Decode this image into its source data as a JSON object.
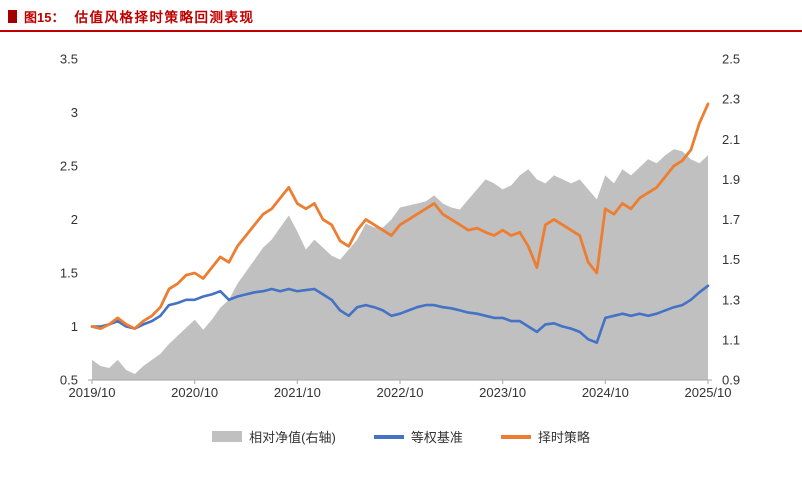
{
  "header": {
    "figure_label": "图15：",
    "title": "估值风格择时策略回测表现"
  },
  "colors": {
    "accent": "#c00000",
    "axis_line": "#a6a6a6",
    "text": "#333333"
  },
  "chart_data": {
    "type": "line",
    "title": "估值风格择时策略回测表现",
    "n_points": 73,
    "x_tick_labels": [
      "2019/10",
      "2020/10",
      "2021/10",
      "2022/10",
      "2023/10",
      "2024/10",
      "2025/10"
    ],
    "x_tick_positions": [
      0,
      12,
      24,
      36,
      48,
      60,
      72
    ],
    "left_axis": {
      "min": 0.5,
      "max": 3.5,
      "tick_values": [
        0.5,
        1,
        1.5,
        2,
        2.5,
        3,
        3.5
      ],
      "tick_labels": [
        "0.5",
        "1",
        "1.5",
        "2",
        "2.5",
        "3",
        "3.5"
      ]
    },
    "right_axis": {
      "min": 0.9,
      "max": 2.5,
      "tick_values": [
        0.9,
        1.1,
        1.3,
        1.5,
        1.7,
        1.9,
        2.1,
        2.3,
        2.5
      ],
      "tick_labels": [
        "0.9",
        "1.1",
        "1.3",
        "1.5",
        "1.7",
        "1.9",
        "2.1",
        "2.3",
        "2.5"
      ]
    },
    "grid": false,
    "legend_position": "bottom",
    "series": [
      {
        "name": "相对净值(右轴)",
        "type": "area",
        "axis": "right",
        "color": "#c0c0c0",
        "values": [
          1.0,
          0.97,
          0.96,
          1.0,
          0.95,
          0.93,
          0.97,
          1.0,
          1.03,
          1.08,
          1.12,
          1.16,
          1.2,
          1.15,
          1.2,
          1.26,
          1.3,
          1.38,
          1.44,
          1.5,
          1.56,
          1.6,
          1.66,
          1.72,
          1.64,
          1.55,
          1.6,
          1.56,
          1.52,
          1.5,
          1.55,
          1.6,
          1.68,
          1.66,
          1.66,
          1.7,
          1.76,
          1.77,
          1.78,
          1.79,
          1.82,
          1.78,
          1.76,
          1.75,
          1.8,
          1.85,
          1.9,
          1.88,
          1.85,
          1.87,
          1.92,
          1.95,
          1.9,
          1.88,
          1.92,
          1.9,
          1.88,
          1.9,
          1.85,
          1.8,
          1.92,
          1.88,
          1.95,
          1.92,
          1.96,
          2.0,
          1.98,
          2.02,
          2.05,
          2.04,
          2.0,
          1.98,
          2.02
        ]
      },
      {
        "name": "等权基准",
        "type": "line",
        "axis": "left",
        "color": "#4472c4",
        "width": 2.6,
        "values": [
          1.0,
          1.0,
          1.02,
          1.05,
          1.0,
          0.98,
          1.02,
          1.05,
          1.1,
          1.2,
          1.22,
          1.25,
          1.25,
          1.28,
          1.3,
          1.33,
          1.25,
          1.28,
          1.3,
          1.32,
          1.33,
          1.35,
          1.33,
          1.35,
          1.33,
          1.34,
          1.35,
          1.3,
          1.25,
          1.15,
          1.1,
          1.18,
          1.2,
          1.18,
          1.15,
          1.1,
          1.12,
          1.15,
          1.18,
          1.2,
          1.2,
          1.18,
          1.17,
          1.15,
          1.13,
          1.12,
          1.1,
          1.08,
          1.08,
          1.05,
          1.05,
          1.0,
          0.95,
          1.02,
          1.03,
          1.0,
          0.98,
          0.95,
          0.88,
          0.85,
          1.08,
          1.1,
          1.12,
          1.1,
          1.12,
          1.1,
          1.12,
          1.15,
          1.18,
          1.2,
          1.25,
          1.32,
          1.38
        ]
      },
      {
        "name": "择时策略",
        "type": "line",
        "axis": "left",
        "color": "#ed7d31",
        "width": 2.8,
        "values": [
          1.0,
          0.98,
          1.02,
          1.08,
          1.02,
          0.98,
          1.05,
          1.1,
          1.18,
          1.35,
          1.4,
          1.48,
          1.5,
          1.45,
          1.55,
          1.65,
          1.6,
          1.75,
          1.85,
          1.95,
          2.05,
          2.1,
          2.2,
          2.3,
          2.15,
          2.1,
          2.15,
          2.0,
          1.95,
          1.8,
          1.75,
          1.9,
          2.0,
          1.95,
          1.9,
          1.85,
          1.95,
          2.0,
          2.05,
          2.1,
          2.15,
          2.05,
          2.0,
          1.95,
          1.9,
          1.92,
          1.88,
          1.85,
          1.9,
          1.85,
          1.88,
          1.75,
          1.55,
          1.95,
          2.0,
          1.95,
          1.9,
          1.85,
          1.6,
          1.5,
          2.1,
          2.05,
          2.15,
          2.1,
          2.2,
          2.25,
          2.3,
          2.4,
          2.5,
          2.55,
          2.65,
          2.9,
          3.08
        ]
      }
    ]
  }
}
